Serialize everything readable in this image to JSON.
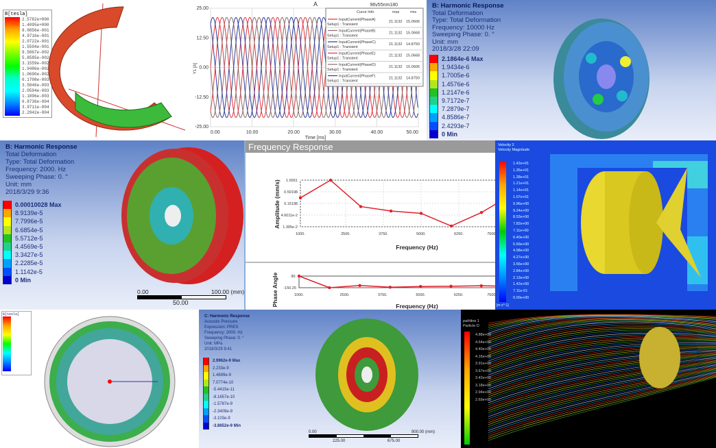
{
  "panel_field": {
    "title": "B[tesla]",
    "legend": [
      "2.5782e+000",
      "1.4095e+000",
      "8.0856e-001",
      "4.9716e-001",
      "2.0722e-001",
      "1.5594e-001",
      "9.5867e-002",
      "5.8585e-002",
      "3.1559e-002",
      "1.9486e-002",
      "1.0690e-002",
      "6.1708e-003",
      "3.5846e-003",
      "2.0594e-003",
      "1.1896e-003",
      "6.8736e-004",
      "3.9711e-004",
      "2.2942e-004"
    ]
  },
  "panel_current": {
    "chart_data": {
      "type": "line",
      "title": "A",
      "subtitle": "96v55nm180",
      "xlabel": "Time [ms]",
      "ylabel": "Y1 [A]",
      "xlim": [
        0,
        50
      ],
      "ylim": [
        -25,
        25
      ],
      "x_ticks": [
        "0.00",
        "10.00",
        "20.00",
        "30.00",
        "40.00",
        "50.00"
      ],
      "y_ticks": [
        "25.00",
        "12.50",
        "0.00",
        "-12.50",
        "-25.00"
      ],
      "grid": true,
      "legend_placement": "top-right",
      "legend_headers": [
        "Curve Info",
        "max",
        "rms"
      ],
      "series": [
        {
          "name": "InputCurrent(PhaseA)",
          "setup": "Setup1 : Transient",
          "max": "21.1132",
          "rms": "15.0606",
          "color": "#e0323a",
          "amplitude": 21.1132,
          "period_ms": 6.67,
          "phase_deg": 0
        },
        {
          "name": "InputCurrent(PhaseB)",
          "setup": "Setup1 : Transient",
          "max": "21.1132",
          "rms": "15.0668",
          "color": "#8a6a6a",
          "amplitude": 21.1132,
          "period_ms": 6.67,
          "phase_deg": 120
        },
        {
          "name": "InputCurrent(PhaseC)",
          "setup": "Setup1 : Transient",
          "max": "21.1132",
          "rms": "14.8750",
          "color": "#2a3a9a",
          "amplitude": 21.1132,
          "period_ms": 6.67,
          "phase_deg": 240
        },
        {
          "name": "InputCurrent(PhaseE)",
          "setup": "Setup1 : Transient",
          "max": "21.1132",
          "rms": "15.0668",
          "color": "#e0323a",
          "amplitude": 21.1132,
          "period_ms": 6.67,
          "phase_deg": 60
        },
        {
          "name": "InputCurrent(PhaseD)",
          "setup": "Setup1 : Transient",
          "max": "21.1132",
          "rms": "15.0606",
          "color": "#8a6a6a",
          "amplitude": 21.1132,
          "period_ms": 6.67,
          "phase_deg": 180
        },
        {
          "name": "InputCurrent(PhaseF)",
          "setup": "Setup1 : Transient",
          "max": "21.1132",
          "rms": "14.8750",
          "color": "#2a3a9a",
          "amplitude": 21.1132,
          "period_ms": 6.67,
          "phase_deg": 300
        }
      ]
    }
  },
  "panel_harm1": {
    "title": "B: Harmonic Response",
    "lines": [
      "Total Deformation",
      "Type: Total Deformation",
      "Frequency: 10000 Hz",
      "Sweeping Phase: 0. °",
      "Unit: mm",
      "2018/3/28 22:09"
    ],
    "legend": [
      "2.1864e-6 Max",
      "1.9434e-6",
      "1.7005e-6",
      "1.4576e-6",
      "1.2147e-6",
      "9.7172e-7",
      "7.2879e-7",
      "4.8586e-7",
      "2.4293e-7",
      "0 Min"
    ]
  },
  "panel_harm2": {
    "title": "B: Harmonic Response",
    "lines": [
      "Total Deformation",
      "Type: Total Deformation",
      "Frequency: 2000. Hz",
      "Sweeping Phase: 0. °",
      "Unit: mm",
      "2018/3/29 9:36"
    ],
    "legend": [
      "0.00010028 Max",
      "8.9139e-5",
      "7.7996e-5",
      "6.6854e-5",
      "5.5712e-5",
      "4.4569e-5",
      "3.3427e-5",
      "2.2285e-5",
      "1.1142e-5",
      "0 Min"
    ],
    "scale": [
      "0.00",
      "100.00 (mm)",
      "50.00"
    ]
  },
  "panel_freq": {
    "header": "Frequency Response",
    "chart_data": [
      {
        "type": "line",
        "xlabel": "Frequency (Hz)",
        "ylabel": "Amplitude (mm/s)",
        "yscale": "log",
        "xlim": [
          1000,
          7500
        ],
        "ylim": [
          0.01395,
          1.6551
        ],
        "x_ticks": [
          "1000.",
          "2500.",
          "3750.",
          "5000.",
          "6250.",
          "7500."
        ],
        "y_ticks": [
          "1.6551",
          "0.50198",
          "0.15198",
          "4.6011e-2",
          "1.395e-2"
        ],
        "grid": true,
        "color": "#e0202a",
        "x": [
          1000,
          2000,
          3000,
          4000,
          5000,
          6000,
          7000,
          7500
        ],
        "y": [
          0.27,
          1.6551,
          0.11,
          0.07,
          0.055,
          0.015,
          0.06,
          0.15
        ]
      },
      {
        "type": "line",
        "xlabel": "Frequency (Hz)",
        "ylabel": "Phase Angle",
        "xlim": [
          1000,
          7500
        ],
        "ylim": [
          -150.25,
          90
        ],
        "x_ticks": [
          "1000.",
          "2500.",
          "3750.",
          "5000.",
          "6250.",
          "7500."
        ],
        "y_ticks": [
          "90.",
          "-150.25"
        ],
        "color": "#e0202a",
        "x": [
          1000,
          2000,
          3000,
          4000,
          5000,
          6000,
          7000,
          7500
        ],
        "y": [
          90,
          -150,
          -105,
          -140,
          -125,
          -120,
          -110,
          -115
        ]
      }
    ]
  },
  "panel_cfd": {
    "title": [
      "Velocity 2",
      "Velocity Magnitude"
    ],
    "legend": [
      "1.42e+01",
      "1.35e+01",
      "1.28e+01",
      "1.21e+01",
      "1.14e+01",
      "1.07e+01",
      "9.96e+00",
      "9.24e+00",
      "8.53e+00",
      "7.82e+00",
      "7.11e+00",
      "6.40e+00",
      "5.69e+00",
      "4.98e+00",
      "4.27e+00",
      "3.56e+00",
      "2.84e+00",
      "2.13e+00",
      "1.42e+00",
      "7.11e-01",
      "0.00e+00"
    ],
    "unit": "[m s^-1]"
  },
  "panel_ring": {
    "title": "B[tesla]"
  },
  "panel_acoustic": {
    "title": "C: Harmonic Response",
    "lines": [
      "Acoustic Pressure",
      "Expression: PRES",
      "Frequency: 2000. Hz",
      "Sweeping Phase: 0. °",
      "Unit: MPa",
      "2018/3/29 9:41"
    ],
    "legend": [
      "2.9962e-9 Max",
      "2.233e-9",
      "1.4699e-9",
      "7.0774e-10",
      "-5.4415e-11",
      "-8.1657e-10",
      "-1.5787e-9",
      "-2.3409e-9",
      "-3.103e-9",
      "-3.8652e-9 Min"
    ],
    "scale": [
      "0.00",
      "900.00 (mm)",
      "225.00",
      "675.00"
    ]
  },
  "panel_stream": {
    "title": [
      "pathline 1",
      "Particle D"
    ],
    "legend": [
      "4.88e+00",
      "4.64e+00",
      "4.40e+00",
      "4.16e+00",
      "3.91e+00",
      "3.67e+00",
      "3.42e+00",
      "3.18e+00",
      "2.94e+00",
      "2.69e+00"
    ]
  },
  "colors": {
    "ansys10": [
      "#ff0000",
      "#ffa500",
      "#ffff00",
      "#b5e61d",
      "#22c322",
      "#22d08a",
      "#00ffff",
      "#00a0ff",
      "#0050ff",
      "#0000cc"
    ]
  }
}
